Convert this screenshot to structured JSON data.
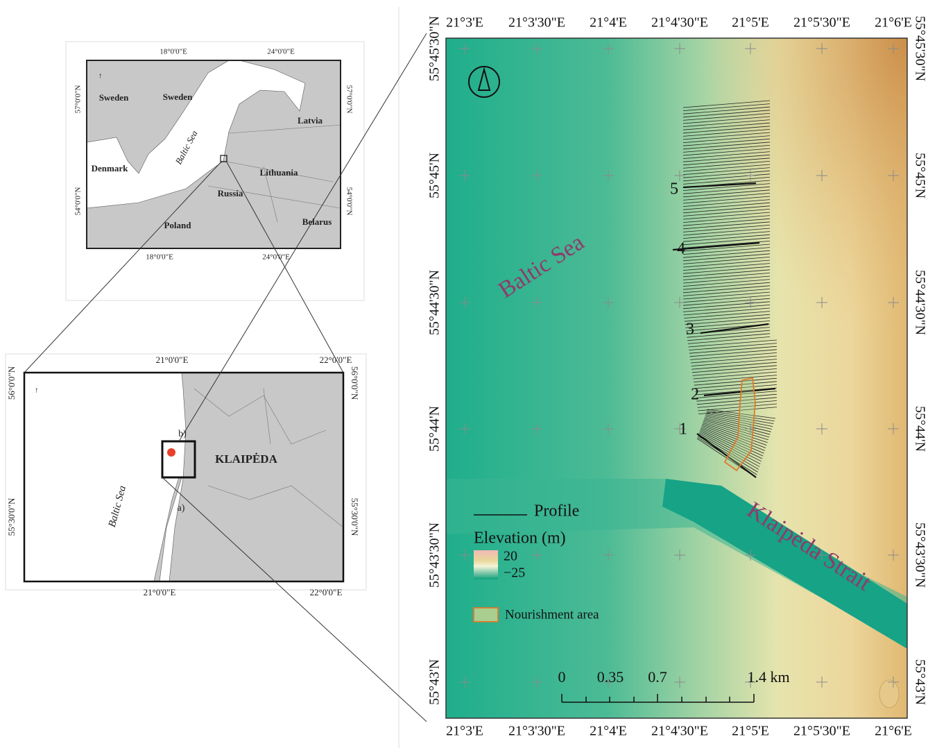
{
  "overview_map": {
    "top_labels": [
      "18°0'0\"E",
      "24°0'0\"E"
    ],
    "bottom_labels": [
      "18°0'0\"E",
      "24°0'0\"E"
    ],
    "left_labels": [
      "57°0'0\"N",
      "54°0'0\"N"
    ],
    "right_labels": [
      "57°0'0\"N",
      "54°0'0\"N"
    ],
    "place_labels": [
      "Sweden",
      "Sweden",
      "Denmark",
      "Baltic Sea",
      "Latvia",
      "Lithuania",
      "Russia",
      "Poland",
      "Belarus"
    ]
  },
  "regional_map": {
    "top_labels": [
      "21°0'0\"E",
      "22°0'0\"E"
    ],
    "bottom_labels": [
      "21°0'0\"E",
      "22°0'0\"E"
    ],
    "left_labels": [
      "56°0'0\"N",
      "55°30'0\"N"
    ],
    "right_labels": [
      "56°0'0\"N",
      "55°30'0\"N"
    ],
    "place_labels": [
      "KLAIPĖDA",
      "Baltic Sea",
      "a)",
      "b)"
    ]
  },
  "detail_map": {
    "top_labels": [
      "21°3'E",
      "21°3'30\"E",
      "21°4'E",
      "21°4'30\"E",
      "21°5'E",
      "21°5'30\"E",
      "21°6'E"
    ],
    "bottom_labels": [
      "21°3'E",
      "21°3'30\"E",
      "21°4'E",
      "21°4'30\"E",
      "21°5'E",
      "21°5'30\"E",
      "21°6'E"
    ],
    "left_labels": [
      "55°45'30\"N",
      "55°45'N",
      "55°44'30\"N",
      "55°44'N",
      "55°43'30\"N",
      "55°43'N"
    ],
    "right_labels": [
      "55°45'30\"N",
      "55°45'N",
      "55°44'30\"N",
      "55°44'N",
      "55°43'30\"N",
      "55°43'N"
    ],
    "place_labels": [
      "Baltic Sea",
      "Klaipėda Strait"
    ],
    "profile_labels": [
      "1",
      "2",
      "3",
      "4",
      "5"
    ],
    "legend": {
      "profile": "Profile",
      "elevation_title": "Elevation (m)",
      "elevation_max": "20",
      "elevation_min": "−25",
      "nourishment": "Nourishment area"
    },
    "scale_labels": [
      "0",
      "0.35",
      "0.7",
      "1.4 km"
    ]
  }
}
